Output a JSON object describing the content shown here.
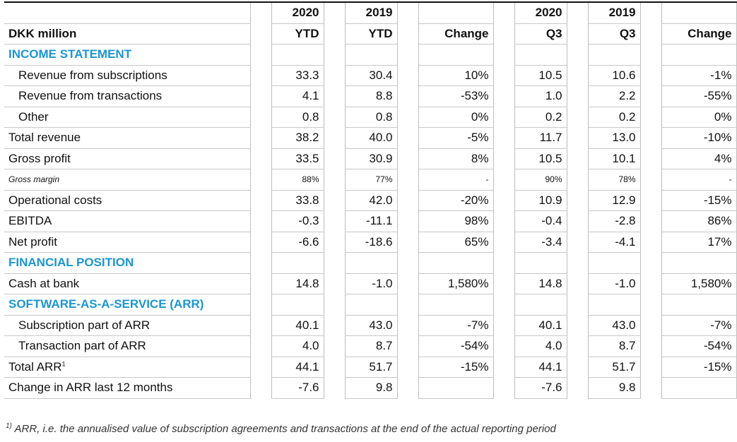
{
  "header": {
    "row1": [
      "",
      "2020",
      "2019",
      "",
      "2020",
      "2019",
      ""
    ],
    "row2": [
      "DKK million",
      "YTD",
      "YTD",
      "Change",
      "Q3",
      "Q3",
      "Change"
    ]
  },
  "rows": [
    {
      "type": "section",
      "label": "INCOME STATEMENT"
    },
    {
      "type": "data",
      "indent": true,
      "label": "Revenue from subscriptions",
      "values": [
        "33.3",
        "30.4",
        "10%",
        "10.5",
        "10.6",
        "-1%"
      ]
    },
    {
      "type": "data",
      "indent": true,
      "label": "Revenue from transactions",
      "values": [
        "4.1",
        "8.8",
        "-53%",
        "1.0",
        "2.2",
        "-55%"
      ]
    },
    {
      "type": "data",
      "indent": true,
      "label": "Other",
      "values": [
        "0.8",
        "0.8",
        "0%",
        "0.2",
        "0.2",
        "0%"
      ]
    },
    {
      "type": "data",
      "label": "Total revenue",
      "values": [
        "38.2",
        "40.0",
        "-5%",
        "11.7",
        "13.0",
        "-10%"
      ]
    },
    {
      "type": "data",
      "label": "Gross profit",
      "values": [
        "33.5",
        "30.9",
        "8%",
        "10.5",
        "10.1",
        "4%"
      ]
    },
    {
      "type": "small",
      "label": "Gross margin",
      "values": [
        "88%",
        "77%",
        "-",
        "90%",
        "78%",
        "-"
      ]
    },
    {
      "type": "data",
      "label": "Operational costs",
      "values": [
        "33.8",
        "42.0",
        "-20%",
        "10.9",
        "12.9",
        "-15%"
      ]
    },
    {
      "type": "data",
      "label": "EBITDA",
      "values": [
        "-0.3",
        "-11.1",
        "98%",
        "-0.4",
        "-2.8",
        "86%"
      ]
    },
    {
      "type": "data",
      "label": "Net profit",
      "values": [
        "-6.6",
        "-18.6",
        "65%",
        "-3.4",
        "-4.1",
        "17%"
      ]
    },
    {
      "type": "section",
      "label": "FINANCIAL POSITION"
    },
    {
      "type": "data",
      "label": "Cash at bank",
      "values": [
        "14.8",
        "-1.0",
        "1,580%",
        "14.8",
        "-1.0",
        "1,580%"
      ]
    },
    {
      "type": "section",
      "label": "SOFTWARE-AS-A-SERVICE (ARR)"
    },
    {
      "type": "data",
      "indent": true,
      "label": "Subscription part of ARR",
      "values": [
        "40.1",
        "43.0",
        "-7%",
        "40.1",
        "43.0",
        "-7%"
      ]
    },
    {
      "type": "data",
      "indent": true,
      "label": "Transaction part of ARR",
      "values": [
        "4.0",
        "8.7",
        "-54%",
        "4.0",
        "8.7",
        "-54%"
      ]
    },
    {
      "type": "data",
      "label": "Total ARR",
      "sup": "1",
      "values": [
        "44.1",
        "51.7",
        "-15%",
        "44.1",
        "51.7",
        "-15%"
      ]
    },
    {
      "type": "data",
      "last": true,
      "label": "Change in ARR last 12 months",
      "values": [
        "-7.6",
        "9.8",
        "",
        "-7.6",
        "9.8",
        ""
      ]
    }
  ],
  "footnote": {
    "marker": "1)",
    "text": "ARR, i.e. the annualised value of subscription agreements and transactions at the end of the actual reporting period"
  },
  "colors": {
    "accent": "#1a96d4",
    "ytd_underline": "#35a7e0"
  }
}
